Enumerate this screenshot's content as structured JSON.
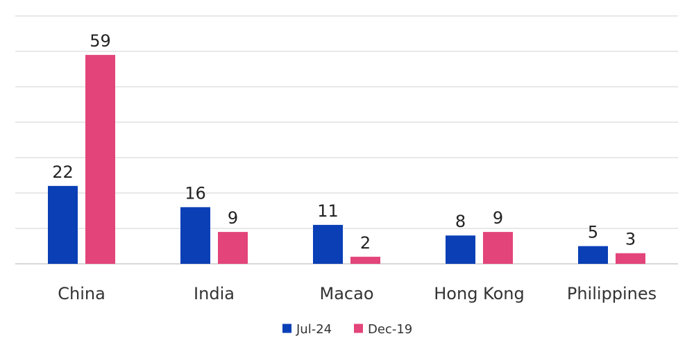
{
  "chart_data": {
    "type": "bar",
    "categories": [
      "China",
      "India",
      "Macao",
      "Hong Kong",
      "Philippines"
    ],
    "series": [
      {
        "name": "Jul-24",
        "color": "#0a3fb5",
        "values": [
          22,
          16,
          11,
          8,
          5
        ]
      },
      {
        "name": "Dec-19",
        "color": "#e3447a",
        "values": [
          59,
          9,
          2,
          9,
          3
        ]
      }
    ],
    "ylim": [
      0,
      70
    ],
    "grid": true,
    "legend_position": "bottom"
  }
}
